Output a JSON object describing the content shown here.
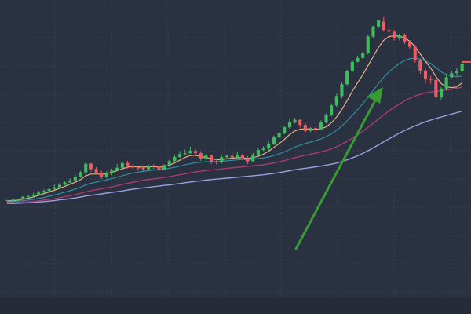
{
  "chart_data": {
    "type": "candlestick",
    "title": "",
    "xlabel": "",
    "ylabel": "",
    "ylim": [
      0,
      100
    ],
    "grid": true,
    "colors": {
      "background": "#2a3140",
      "bottom_band": "#252b37",
      "grid": "#3a4252",
      "up": "#3dbd5b",
      "down": "#ef5b64",
      "ma_fast": "#e8b083",
      "ma_mid": "#2f8fa0",
      "ma_slow": "#b03a78",
      "ma_long": "#9aa0dd",
      "arrow": "#3a9a34",
      "price_marker": "#ef5b64"
    },
    "candles": [
      [
        25.0,
        25.1,
        24.5,
        23.6
      ],
      [
        24.6,
        25.3,
        24.8,
        24.0
      ],
      [
        24.8,
        25.3,
        25.7,
        24.6
      ],
      [
        25.7,
        26.5,
        26.7,
        25.5
      ],
      [
        26.5,
        26.8,
        27.4,
        25.7
      ],
      [
        26.8,
        27.3,
        28.1,
        26.2
      ],
      [
        27.3,
        28.2,
        29.0,
        27.1
      ],
      [
        28.2,
        28.9,
        29.6,
        27.6
      ],
      [
        28.9,
        29.7,
        30.5,
        28.6
      ],
      [
        29.7,
        30.4,
        31.5,
        29.3
      ],
      [
        30.4,
        31.5,
        32.3,
        30.3
      ],
      [
        31.5,
        32.4,
        33.1,
        31.2
      ],
      [
        32.4,
        33.3,
        34.1,
        32.1
      ],
      [
        33.3,
        34.8,
        35.7,
        33.2
      ],
      [
        34.8,
        36.6,
        37.2,
        34.4
      ],
      [
        36.6,
        40.2,
        41.0,
        35.2
      ],
      [
        40.2,
        38.0,
        40.6,
        37.0
      ],
      [
        38.0,
        36.5,
        38.7,
        35.7
      ],
      [
        36.5,
        34.6,
        37.3,
        33.8
      ],
      [
        34.6,
        36.4,
        37.1,
        34.1
      ],
      [
        36.4,
        37.4,
        38.1,
        35.5
      ],
      [
        37.4,
        38.5,
        40.1,
        37.3
      ],
      [
        38.5,
        40.5,
        41.3,
        37.8
      ],
      [
        40.5,
        39.5,
        41.4,
        38.2
      ],
      [
        39.5,
        38.6,
        40.1,
        37.8
      ],
      [
        38.6,
        38.4,
        39.2,
        37.3
      ],
      [
        38.4,
        37.9,
        39.5,
        37.3
      ],
      [
        37.9,
        39.3,
        39.9,
        37.3
      ],
      [
        39.3,
        39.0,
        40.0,
        38.0
      ],
      [
        39.0,
        37.7,
        39.8,
        37.0
      ],
      [
        37.7,
        39.6,
        40.0,
        37.7
      ],
      [
        39.6,
        41.3,
        41.9,
        38.8
      ],
      [
        41.3,
        43.0,
        43.9,
        40.9
      ],
      [
        43.0,
        44.2,
        45.5,
        42.6
      ],
      [
        44.2,
        44.6,
        46.0,
        43.7
      ],
      [
        44.6,
        45.5,
        47.3,
        44.3
      ],
      [
        45.5,
        44.6,
        46.4,
        43.2
      ],
      [
        44.6,
        42.3,
        45.4,
        41.4
      ],
      [
        42.3,
        43.6,
        44.4,
        41.1
      ],
      [
        43.6,
        41.1,
        44.0,
        40.1
      ],
      [
        41.1,
        40.9,
        42.1,
        40.0
      ],
      [
        40.9,
        42.9,
        43.8,
        40.2
      ],
      [
        42.9,
        43.5,
        44.0,
        42.2
      ],
      [
        43.5,
        42.8,
        44.8,
        42.2
      ],
      [
        42.8,
        43.6,
        45.1,
        42.6
      ],
      [
        43.6,
        42.5,
        44.4,
        42.0
      ],
      [
        42.5,
        41.2,
        43.5,
        40.1
      ],
      [
        41.2,
        44.0,
        44.7,
        40.7
      ],
      [
        44.0,
        45.9,
        46.8,
        43.1
      ],
      [
        45.9,
        46.5,
        47.5,
        45.5
      ],
      [
        46.5,
        48.4,
        49.4,
        45.6
      ],
      [
        48.4,
        51.1,
        51.9,
        47.9
      ],
      [
        51.1,
        53.0,
        53.7,
        50.6
      ],
      [
        53.0,
        55.3,
        55.9,
        52.4
      ],
      [
        55.3,
        57.5,
        58.8,
        54.8
      ],
      [
        57.5,
        58.4,
        59.3,
        56.9
      ],
      [
        58.4,
        56.3,
        58.6,
        55.2
      ],
      [
        56.3,
        53.8,
        57.0,
        53.1
      ],
      [
        53.8,
        55.0,
        55.4,
        53.3
      ],
      [
        55.0,
        54.5,
        55.6,
        53.1
      ],
      [
        54.5,
        57.3,
        58.2,
        54.1
      ],
      [
        57.3,
        60.3,
        61.1,
        56.9
      ],
      [
        60.3,
        64.4,
        65.2,
        59.8
      ],
      [
        64.4,
        68.3,
        69.3,
        63.8
      ],
      [
        68.3,
        73.2,
        74.1,
        67.4
      ],
      [
        73.2,
        78.6,
        79.3,
        72.7
      ],
      [
        78.6,
        82.5,
        83.1,
        78.3
      ],
      [
        82.5,
        84.1,
        85.1,
        82.2
      ],
      [
        84.1,
        86.0,
        86.7,
        83.7
      ],
      [
        86.0,
        93.0,
        93.8,
        85.5
      ],
      [
        93.0,
        97.1,
        97.5,
        92.5
      ],
      [
        97.1,
        99.7,
        100.0,
        96.5
      ],
      [
        99.2,
        95.7,
        101.0,
        95.0
      ],
      [
        95.7,
        95.0,
        96.7,
        94.0
      ],
      [
        95.0,
        92.4,
        95.7,
        91.4
      ],
      [
        92.4,
        93.7,
        94.2,
        91.4
      ],
      [
        93.7,
        90.8,
        94.3,
        89.8
      ],
      [
        90.8,
        88.7,
        91.5,
        87.7
      ],
      [
        88.7,
        83.0,
        89.6,
        82.1
      ],
      [
        83.0,
        78.9,
        83.8,
        77.5
      ],
      [
        78.9,
        75.4,
        79.6,
        73.5
      ],
      [
        75.4,
        75.0,
        76.7,
        73.4
      ],
      [
        75.0,
        67.9,
        75.9,
        66.1
      ],
      [
        67.9,
        71.4,
        72.1,
        66.6
      ],
      [
        71.4,
        76.1,
        77.7,
        70.5
      ],
      [
        76.1,
        77.8,
        78.9,
        75.8
      ],
      [
        77.8,
        78.6,
        80.0,
        76.5
      ],
      [
        78.6,
        81.8,
        82.3,
        77.8
      ]
    ],
    "ma_fast": [
      24.8,
      24.9,
      25.1,
      25.5,
      25.9,
      26.4,
      27.1,
      27.8,
      28.5,
      29.2,
      30.0,
      30.8,
      31.7,
      32.5,
      33.6,
      35.2,
      35.9,
      35.9,
      35.8,
      36.0,
      36.6,
      37.3,
      38.1,
      38.8,
      39.0,
      38.9,
      38.8,
      38.9,
      39.0,
      38.8,
      38.9,
      39.6,
      40.5,
      41.7,
      42.8,
      43.6,
      43.7,
      43.2,
      42.8,
      42.3,
      41.9,
      41.9,
      42.2,
      42.5,
      42.7,
      42.7,
      42.4,
      42.7,
      43.3,
      44.2,
      45.4,
      47.0,
      48.6,
      50.3,
      52.3,
      53.8,
      54.5,
      54.7,
      54.6,
      54.4,
      54.7,
      55.5,
      57.2,
      59.6,
      62.7,
      66.4,
      70.3,
      73.8,
      77.1,
      80.9,
      84.7,
      88.5,
      91.4,
      93.0,
      93.3,
      93.2,
      92.4,
      91.0,
      88.8,
      85.7,
      82.6,
      79.9,
      76.3,
      73.5,
      72.1,
      71.8,
      72.1,
      73.8
    ],
    "ma_mid": [
      24.5,
      24.6,
      24.7,
      24.9,
      25.1,
      25.4,
      25.8,
      26.2,
      26.7,
      27.2,
      27.8,
      28.4,
      29.0,
      29.7,
      30.5,
      31.4,
      32.1,
      32.6,
      33.0,
      33.5,
      34.0,
      34.6,
      35.2,
      35.8,
      36.3,
      36.7,
      37.0,
      37.3,
      37.6,
      37.8,
      38.0,
      38.3,
      38.7,
      39.2,
      39.7,
      40.2,
      40.6,
      40.8,
      41.0,
      41.0,
      41.1,
      41.2,
      41.4,
      41.6,
      41.8,
      42.0,
      42.0,
      42.1,
      42.3,
      42.6,
      43.0,
      43.6,
      44.3,
      45.1,
      46.1,
      47.1,
      47.9,
      48.6,
      49.2,
      49.8,
      50.5,
      51.4,
      52.6,
      54.1,
      55.9,
      58.0,
      60.3,
      62.7,
      65.1,
      67.8,
      70.6,
      73.5,
      76.1,
      78.3,
      80.2,
      81.8,
      83.0,
      83.8,
      84.0,
      83.6,
      82.8,
      81.8,
      80.1,
      78.3,
      77.2,
      76.6,
      76.3,
      76.6
    ],
    "ma_slow": [
      24.0,
      24.1,
      24.2,
      24.3,
      24.4,
      24.6,
      24.8,
      25.1,
      25.4,
      25.7,
      26.1,
      26.5,
      26.9,
      27.4,
      27.9,
      28.5,
      29.0,
      29.4,
      29.8,
      30.2,
      30.6,
      31.1,
      31.6,
      32.1,
      32.5,
      32.9,
      33.3,
      33.6,
      33.9,
      34.2,
      34.5,
      34.8,
      35.2,
      35.6,
      36.0,
      36.4,
      36.8,
      37.1,
      37.4,
      37.6,
      37.8,
      38.0,
      38.3,
      38.5,
      38.7,
      38.9,
      39.1,
      39.3,
      39.5,
      39.8,
      40.1,
      40.5,
      41.0,
      41.5,
      42.1,
      42.7,
      43.2,
      43.7,
      44.2,
      44.6,
      45.1,
      45.7,
      46.4,
      47.3,
      48.3,
      49.5,
      50.8,
      52.2,
      53.7,
      55.3,
      57.0,
      58.8,
      60.5,
      62.1,
      63.6,
      65.0,
      66.3,
      67.4,
      68.3,
      69.0,
      69.6,
      70.0,
      70.3,
      70.5,
      70.8,
      71.1,
      71.5,
      72.0
    ],
    "ma_long": [
      23.7,
      23.7,
      23.8,
      23.9,
      24.0,
      24.1,
      24.3,
      24.5,
      24.7,
      24.9,
      25.2,
      25.4,
      25.7,
      26.0,
      26.4,
      26.8,
      27.1,
      27.4,
      27.7,
      28.0,
      28.3,
      28.6,
      28.9,
      29.3,
      29.6,
      29.9,
      30.2,
      30.4,
      30.7,
      30.9,
      31.2,
      31.4,
      31.7,
      32.0,
      32.3,
      32.6,
      32.9,
      33.1,
      33.4,
      33.6,
      33.8,
      34.0,
      34.2,
      34.4,
      34.6,
      34.8,
      35.0,
      35.2,
      35.4,
      35.6,
      35.9,
      36.2,
      36.5,
      36.9,
      37.3,
      37.7,
      38.0,
      38.3,
      38.6,
      38.9,
      39.2,
      39.6,
      40.0,
      40.5,
      41.1,
      41.8,
      42.6,
      43.5,
      44.5,
      45.6,
      46.8,
      48.0,
      49.3,
      50.5,
      51.7,
      52.9,
      54.0,
      55.0,
      55.9,
      56.8,
      57.6,
      58.3,
      59.0,
      59.6,
      60.2,
      60.8,
      61.4,
      62.0
    ]
  },
  "annotations": {
    "arrow": "trend-arrow"
  }
}
